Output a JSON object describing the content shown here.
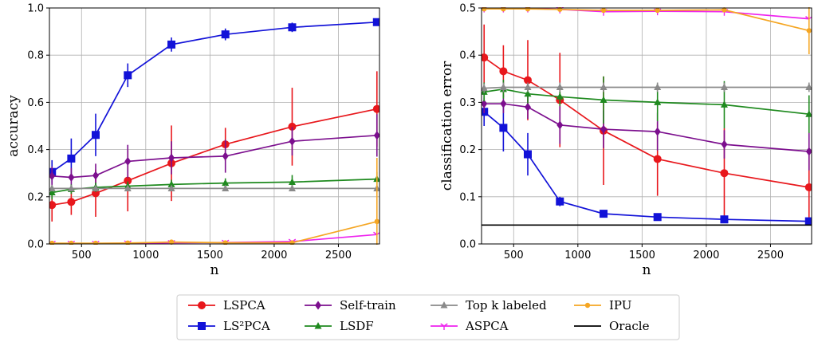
{
  "chart_data": [
    {
      "type": "line",
      "xlabel": "n",
      "ylabel": "accuracy",
      "xlim": [
        250,
        2820
      ],
      "ylim": [
        0,
        1.0
      ],
      "xticks": [
        500,
        1000,
        1500,
        2000,
        2500
      ],
      "yticks": [
        0.0,
        0.2,
        0.4,
        0.6,
        0.8,
        1.0
      ],
      "grid": true,
      "x": [
        270,
        420,
        610,
        860,
        1200,
        1620,
        2140,
        2800
      ],
      "series": [
        {
          "name": "LSPCA",
          "color": "#e8171c",
          "marker": "circle",
          "values": [
            0.165,
            0.178,
            0.215,
            0.268,
            0.342,
            0.422,
            0.497,
            0.572
          ],
          "errors": [
            0.07,
            0.055,
            0.1,
            0.13,
            0.16,
            0.07,
            0.165,
            0.16
          ]
        },
        {
          "name": "LS²PCA",
          "color": "#1212d8",
          "marker": "square",
          "values": [
            0.305,
            0.362,
            0.462,
            0.715,
            0.845,
            0.888,
            0.918,
            0.94
          ],
          "errors": [
            0.05,
            0.085,
            0.09,
            0.05,
            0.03,
            0.025,
            0.02,
            0.012
          ]
        },
        {
          "name": "Self-train",
          "color": "#7c0f8e",
          "marker": "diamond",
          "values": [
            0.288,
            0.282,
            0.29,
            0.35,
            0.365,
            0.372,
            0.435,
            0.46
          ],
          "errors": [
            0.04,
            0.04,
            0.05,
            0.07,
            0.07,
            0.07,
            0.06,
            0.09
          ]
        },
        {
          "name": "LSDF",
          "color": "#1f8a1f",
          "marker": "triangle",
          "values": [
            0.218,
            0.232,
            0.24,
            0.245,
            0.252,
            0.258,
            0.262,
            0.275
          ],
          "errors": [
            0.03,
            0.02,
            0.02,
            0.02,
            0.02,
            0.02,
            0.03,
            0.03
          ]
        },
        {
          "name": "Top k labeled",
          "color": "#8a8a8a",
          "marker": "triangle",
          "values": [
            0.235,
            0.235,
            0.235,
            0.235,
            0.235,
            0.235,
            0.235,
            0.235
          ],
          "errors": [
            0.01,
            0.01,
            0.01,
            0.01,
            0.01,
            0.01,
            0.01,
            0.01
          ]
        },
        {
          "name": "ASPCA",
          "color": "#ee22ee",
          "marker": "tri-down",
          "values": [
            0.002,
            0.002,
            0.002,
            0.003,
            0.005,
            0.006,
            0.01,
            0.04
          ],
          "errors": [
            0,
            0,
            0,
            0,
            0,
            0,
            0,
            0
          ]
        },
        {
          "name": "IPU",
          "color": "#f5a623",
          "marker": "circle-small",
          "values": [
            0.003,
            0.003,
            0.003,
            0.004,
            0.008,
            0.005,
            0.005,
            0.095
          ],
          "errors": [
            0,
            0,
            0,
            0,
            0,
            0,
            0,
            0.27
          ]
        }
      ]
    },
    {
      "type": "line",
      "xlabel": "n",
      "ylabel": "classification error",
      "xlim": [
        250,
        2820
      ],
      "ylim": [
        0,
        0.5
      ],
      "xticks": [
        500,
        1000,
        1500,
        2000,
        2500
      ],
      "yticks": [
        0.0,
        0.1,
        0.2,
        0.3,
        0.4,
        0.5
      ],
      "grid": true,
      "x": [
        270,
        420,
        610,
        860,
        1200,
        1620,
        2140,
        2800
      ],
      "series": [
        {
          "name": "LSPCA",
          "color": "#e8171c",
          "marker": "circle",
          "values": [
            0.395,
            0.366,
            0.347,
            0.305,
            0.24,
            0.18,
            0.15,
            0.12
          ],
          "errors": [
            0.07,
            0.055,
            0.085,
            0.1,
            0.115,
            0.078,
            0.095,
            0.08
          ]
        },
        {
          "name": "LS²PCA",
          "color": "#1212d8",
          "marker": "square",
          "values": [
            0.28,
            0.246,
            0.19,
            0.09,
            0.064,
            0.057,
            0.052,
            0.048
          ],
          "errors": [
            0.03,
            0.05,
            0.045,
            0.01,
            0.005,
            0.004,
            0.003,
            0.003
          ]
        },
        {
          "name": "Self-train",
          "color": "#7c0f8e",
          "marker": "diamond",
          "values": [
            0.297,
            0.297,
            0.29,
            0.252,
            0.243,
            0.238,
            0.211,
            0.196
          ],
          "errors": [
            0.02,
            0.02,
            0.025,
            0.04,
            0.04,
            0.04,
            0.03,
            0.04
          ]
        },
        {
          "name": "LSDF",
          "color": "#1f8a1f",
          "marker": "triangle",
          "values": [
            0.322,
            0.328,
            0.318,
            0.312,
            0.305,
            0.3,
            0.295,
            0.275
          ],
          "errors": [
            0.02,
            0.02,
            0.02,
            0.02,
            0.05,
            0.04,
            0.05,
            0.04
          ]
        },
        {
          "name": "Top k labeled",
          "color": "#8a8a8a",
          "marker": "triangle",
          "values": [
            0.33,
            0.332,
            0.332,
            0.332,
            0.332,
            0.332,
            0.332,
            0.332
          ],
          "errors": [
            0.01,
            0.01,
            0.01,
            0.01,
            0.01,
            0.01,
            0.01,
            0.01
          ]
        },
        {
          "name": "ASPCA",
          "color": "#ee22ee",
          "marker": "tri-down",
          "values": [
            0.499,
            0.499,
            0.499,
            0.497,
            0.492,
            0.493,
            0.492,
            0.477
          ],
          "errors": [
            0,
            0,
            0,
            0,
            0,
            0,
            0,
            0
          ]
        },
        {
          "name": "IPU",
          "color": "#f5a623",
          "marker": "circle-small",
          "values": [
            0.498,
            0.498,
            0.498,
            0.497,
            0.495,
            0.495,
            0.496,
            0.452
          ],
          "errors": [
            0,
            0,
            0,
            0,
            0,
            0,
            0,
            0.05
          ]
        },
        {
          "name": "Oracle",
          "color": "#000000",
          "marker": "none",
          "values": [
            0.04,
            0.04,
            0.04,
            0.04,
            0.04,
            0.04,
            0.04,
            0.04
          ],
          "errors": [
            0,
            0,
            0,
            0,
            0,
            0,
            0,
            0
          ]
        }
      ]
    }
  ],
  "legend": {
    "placement": "bottom-center",
    "columns": [
      [
        {
          "label": "LSPCA",
          "color": "#e8171c",
          "marker": "circle"
        },
        {
          "label": "LS²PCA",
          "color": "#1212d8",
          "marker": "square"
        }
      ],
      [
        {
          "label": "Self-train",
          "color": "#7c0f8e",
          "marker": "diamond"
        },
        {
          "label": "LSDF",
          "color": "#1f8a1f",
          "marker": "triangle"
        }
      ],
      [
        {
          "label": "Top k labeled",
          "color": "#8a8a8a",
          "marker": "triangle"
        },
        {
          "label": "ASPCA",
          "color": "#ee22ee",
          "marker": "tri-down"
        }
      ],
      [
        {
          "label": "IPU",
          "color": "#f5a623",
          "marker": "circle-small"
        },
        {
          "label": "Oracle",
          "color": "#000000",
          "marker": "none"
        }
      ]
    ]
  }
}
